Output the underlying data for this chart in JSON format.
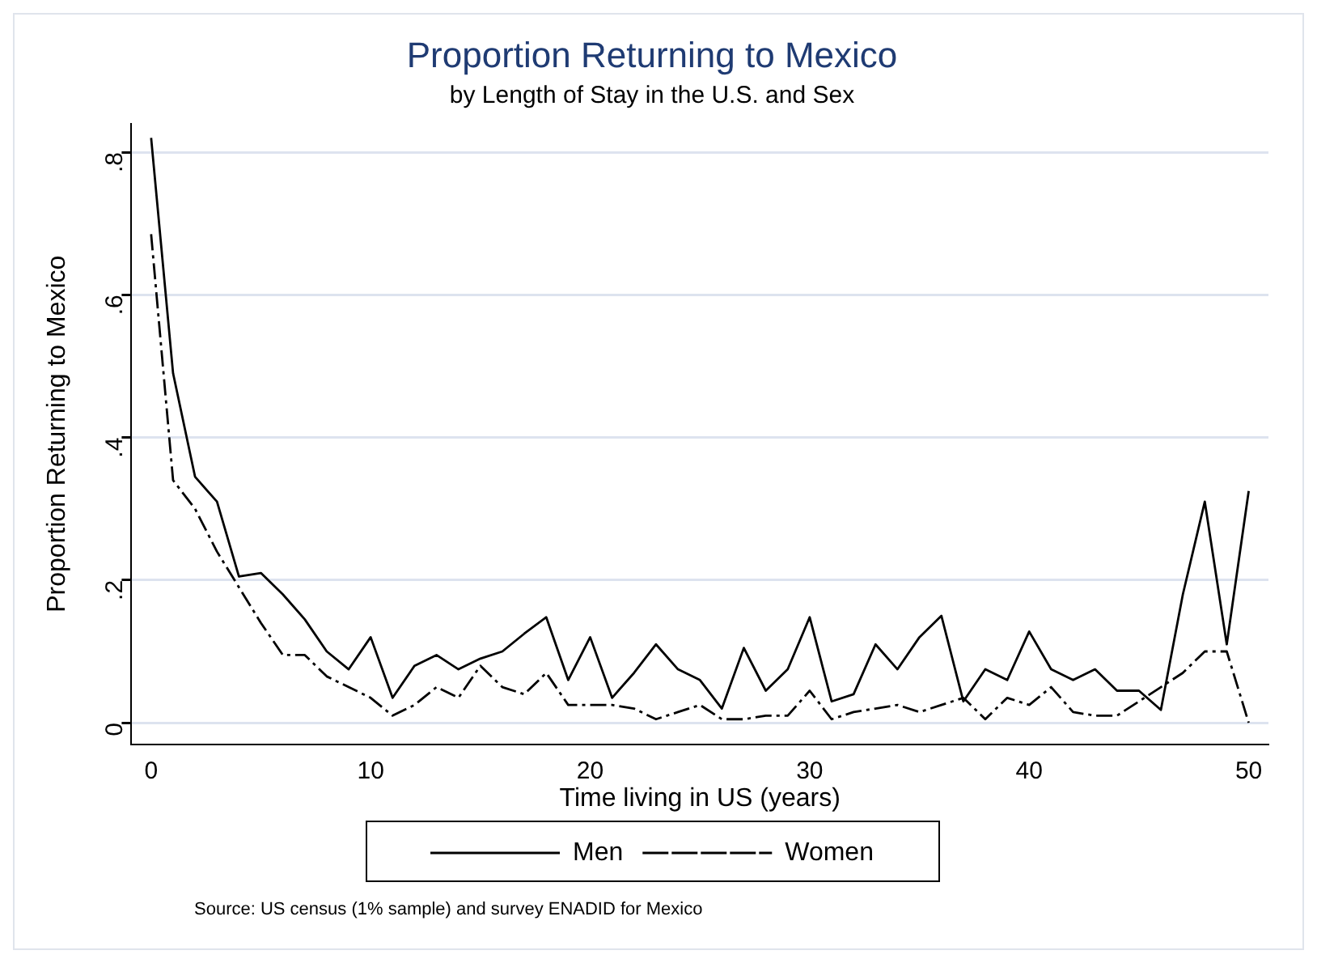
{
  "chart_data": {
    "type": "line",
    "title": "Proportion Returning to Mexico",
    "subtitle": "by Length of Stay in the U.S. and Sex",
    "xlabel": "Time living in US (years)",
    "ylabel": "Proportion Returning to Mexico",
    "x": [
      0,
      1,
      2,
      3,
      4,
      5,
      6,
      7,
      8,
      9,
      10,
      11,
      12,
      13,
      14,
      15,
      16,
      17,
      18,
      19,
      20,
      21,
      22,
      23,
      24,
      25,
      26,
      27,
      28,
      29,
      30,
      31,
      32,
      33,
      34,
      35,
      36,
      37,
      38,
      39,
      40,
      41,
      42,
      43,
      44,
      45,
      46,
      47,
      48,
      49,
      50
    ],
    "series": [
      {
        "name": "Men",
        "color": "#000000",
        "line_style": "solid",
        "values": [
          0.82,
          0.49,
          0.345,
          0.31,
          0.205,
          0.21,
          0.18,
          0.145,
          0.1,
          0.075,
          0.12,
          0.035,
          0.08,
          0.095,
          0.075,
          0.09,
          0.1,
          0.125,
          0.148,
          0.06,
          0.12,
          0.035,
          0.07,
          0.11,
          0.075,
          0.06,
          0.02,
          0.105,
          0.045,
          0.075,
          0.148,
          0.03,
          0.04,
          0.11,
          0.075,
          0.12,
          0.15,
          0.03,
          0.075,
          0.06,
          0.128,
          0.075,
          0.06,
          0.075,
          0.045,
          0.045,
          0.018,
          0.18,
          0.31,
          0.11,
          0.325
        ]
      },
      {
        "name": "Women",
        "color": "#000000",
        "line_style": "dashdot",
        "values": [
          0.685,
          0.34,
          0.3,
          0.24,
          0.19,
          0.14,
          0.095,
          0.095,
          0.065,
          0.05,
          0.035,
          0.01,
          0.025,
          0.05,
          0.035,
          0.08,
          0.05,
          0.04,
          0.07,
          0.025,
          0.025,
          0.025,
          0.02,
          0.005,
          0.015,
          0.025,
          0.005,
          0.005,
          0.01,
          0.01,
          0.045,
          0.005,
          0.015,
          0.02,
          0.025,
          0.015,
          0.025,
          0.035,
          0.005,
          0.035,
          0.025,
          0.05,
          0.015,
          0.01,
          0.01,
          0.03,
          0.05,
          0.07,
          0.1,
          0.1,
          0.0
        ]
      }
    ],
    "xlim": [
      -0.9,
      50.9
    ],
    "xticks": [
      0,
      10,
      20,
      30,
      40,
      50
    ],
    "ylim": [
      -0.03,
      0.84
    ],
    "yticks": [
      0,
      {
        "value": 0.2,
        "label": ".2"
      },
      {
        "value": 0.4,
        "label": ".4"
      },
      {
        "value": 0.6,
        "label": ".6"
      },
      {
        "value": 0.8,
        "label": ".8"
      }
    ],
    "grid": "y",
    "legend": "bottom",
    "marker": "none",
    "annotations": [
      "Source: US census (1% sample) and survey ENADID for Mexico"
    ]
  }
}
